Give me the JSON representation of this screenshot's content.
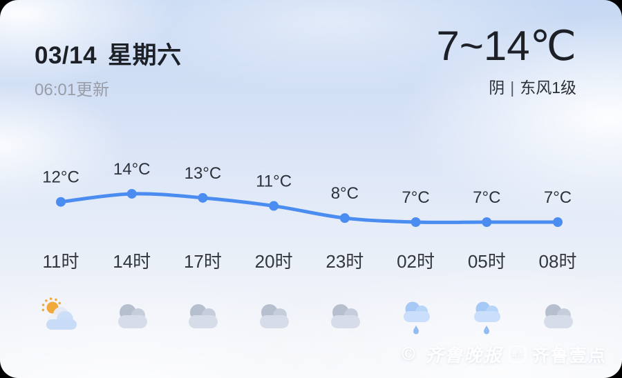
{
  "header": {
    "date": "03/14",
    "weekday": "星期六",
    "updated": "06:01更新",
    "temp_range": "7~14℃",
    "condition": "阴",
    "divider": "|",
    "wind": "东风1级"
  },
  "chart_data": {
    "type": "line",
    "x": [
      "11时",
      "14时",
      "17时",
      "20时",
      "23时",
      "02时",
      "05时",
      "08时"
    ],
    "series": [
      {
        "name": "temperature",
        "values": [
          12,
          14,
          13,
          11,
          8,
          7,
          7,
          7
        ]
      }
    ],
    "point_labels": [
      "12°C",
      "14°C",
      "13°C",
      "11°C",
      "8°C",
      "7°C",
      "7°C",
      "7°C"
    ],
    "unit": "°C",
    "ylim": [
      6,
      15
    ],
    "grid": false,
    "legend": false,
    "line_color": "#4a8cf0",
    "label_color": "#2c313a",
    "icons": [
      "partly-cloudy",
      "cloudy",
      "cloudy",
      "cloudy",
      "cloudy",
      "light-rain",
      "light-rain",
      "cloudy"
    ]
  },
  "watermark": {
    "copyright": "©",
    "paper": "齐鲁晚报",
    "badge": "壹点",
    "brand": "齐鲁壹点"
  },
  "colors": {
    "accent_blue": "#4a8cf0",
    "text_dark": "#1d2127",
    "text_gray": "#989da7"
  }
}
